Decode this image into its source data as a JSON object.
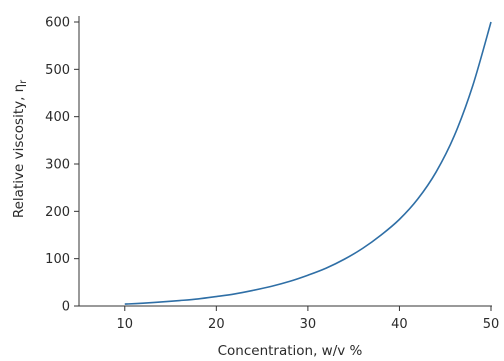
{
  "chart_data": {
    "type": "line",
    "title": "",
    "xlabel": "Concentration, w/v %",
    "ylabel_main": "Relative viscosity, η",
    "ylabel_subscript": "r",
    "xlim": [
      5,
      50
    ],
    "ylim": [
      0,
      600
    ],
    "x_ticks": [
      10,
      20,
      30,
      40,
      50
    ],
    "y_ticks": [
      0,
      100,
      200,
      300,
      400,
      500,
      600
    ],
    "grid": false,
    "legend": "none",
    "line_color": "#2f6fa6",
    "series": [
      {
        "x": [
          10,
          12,
          14,
          16,
          18,
          20,
          22,
          24,
          26,
          28,
          30,
          32,
          34,
          36,
          38,
          40,
          42,
          44,
          46,
          48,
          50
        ],
        "y": [
          4,
          6,
          8.5,
          11.5,
          15,
          20,
          25.5,
          33,
          41.5,
          52,
          65,
          80,
          99,
          122,
          150,
          183,
          226,
          283,
          360,
          465,
          600
        ]
      }
    ]
  }
}
